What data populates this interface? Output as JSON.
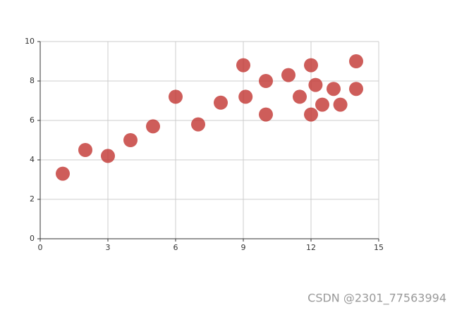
{
  "chart_data": {
    "type": "scatter",
    "x": [
      1,
      2,
      3,
      4,
      5,
      6,
      7,
      8,
      9,
      9.1,
      10,
      10,
      11,
      11.5,
      12,
      12,
      12.2,
      12.5,
      13,
      13.3,
      14,
      14
    ],
    "values": [
      3.3,
      4.5,
      4.2,
      5.0,
      5.7,
      7.2,
      5.8,
      6.9,
      8.8,
      7.2,
      8.0,
      6.3,
      8.3,
      7.2,
      8.8,
      6.3,
      7.8,
      6.8,
      7.6,
      6.8,
      9.0,
      7.6
    ],
    "color": "#c23531",
    "xlim": [
      0,
      15
    ],
    "xticks": [
      0,
      3,
      6,
      9,
      12,
      15
    ],
    "ylim": [
      0,
      10
    ],
    "yticks": [
      0,
      2,
      4,
      6,
      8,
      10
    ],
    "grid": true
  },
  "watermark": "CSDN @2301_77563994"
}
